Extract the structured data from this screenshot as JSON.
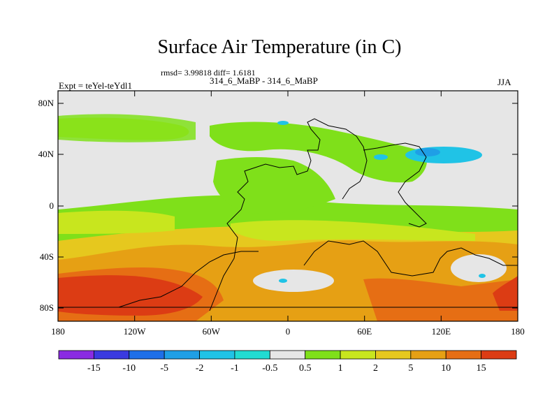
{
  "title": "Surface Air Temperature (in C)",
  "stats": "rmsd= 3.99818  diff= 1.6181",
  "runs": "314_6_MaBP - 314_6_MaBP",
  "expt": "Expt = teYel-teYdl1",
  "season": "JJA",
  "axes": {
    "x_ticks": [
      "180",
      "120W",
      "60W",
      "0",
      "60E",
      "120E",
      "180"
    ],
    "y_ticks": [
      "80N",
      "40N",
      "0",
      "40S",
      "80S"
    ]
  },
  "colorbar": {
    "colors": [
      "#8a2be2",
      "#3a3ae0",
      "#1e6fe8",
      "#1f9fe6",
      "#20c3e6",
      "#22dcd2",
      "#e6e6e6",
      "#7fe01a",
      "#c8e61e",
      "#e6c81e",
      "#e6a014",
      "#e66e14",
      "#dc3c14"
    ],
    "labels": [
      "-15",
      "-10",
      "-5",
      "-2",
      "-1",
      "-0.5",
      "0.5",
      "1",
      "2",
      "5",
      "10",
      "15"
    ]
  },
  "palette": {
    "neutral": "#e6e6e6",
    "green": "#7fe01a",
    "yellowgreen": "#c8e61e",
    "yellow": "#e6c81e",
    "orange": "#e6a014",
    "darkorange": "#e66e14",
    "red": "#dc3c14",
    "cyan": "#20c3e6",
    "lightblue": "#1f9fe6"
  }
}
